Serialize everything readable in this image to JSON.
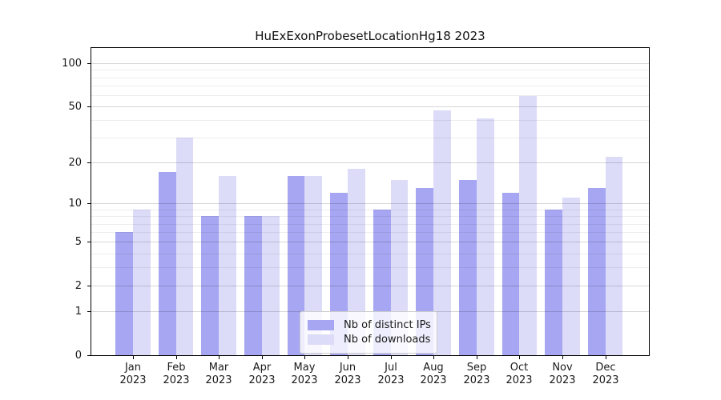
{
  "title": "HuExExonProbesetLocationHg18 2023",
  "legend": {
    "items": [
      {
        "label": "Nb of distinct IPs",
        "color": "#a6a6f2"
      },
      {
        "label": "Nb of downloads",
        "color": "#dcdcf8"
      }
    ]
  },
  "y_axis": {
    "tick_labels": [
      100,
      50,
      20,
      10,
      5,
      2,
      1,
      0
    ],
    "major_gridlines": [
      1,
      2,
      5,
      10,
      20,
      50,
      100
    ],
    "minor_gridlines": [
      3,
      4,
      6,
      7,
      8,
      9,
      30,
      40,
      60,
      70,
      80,
      90
    ]
  },
  "x_axis": {
    "months": [
      "Jan",
      "Feb",
      "Mar",
      "Apr",
      "May",
      "Jun",
      "Jul",
      "Aug",
      "Sep",
      "Oct",
      "Nov",
      "Dec"
    ],
    "year": "2023"
  },
  "chart_data": {
    "type": "bar",
    "title": "HuExExonProbesetLocationHg18 2023",
    "xlabel": "",
    "ylabel": "",
    "scale": "log10(1+x)",
    "ylim": [
      0,
      115
    ],
    "grid": "on",
    "legend_position": "bottom-center",
    "categories": [
      "Jan 2023",
      "Feb 2023",
      "Mar 2023",
      "Apr 2023",
      "May 2023",
      "Jun 2023",
      "Jul 2023",
      "Aug 2023",
      "Sep 2023",
      "Oct 2023",
      "Nov 2023",
      "Dec 2023"
    ],
    "series": [
      {
        "name": "Nb of distinct IPs",
        "color": "#a6a6f2",
        "values": [
          6,
          17,
          8,
          8,
          16,
          12,
          9,
          13,
          15,
          12,
          9,
          13
        ]
      },
      {
        "name": "Nb of downloads",
        "color": "#dcdcf8",
        "values": [
          9,
          30,
          16,
          8,
          16,
          18,
          15,
          47,
          41,
          59,
          11,
          22
        ]
      }
    ]
  }
}
